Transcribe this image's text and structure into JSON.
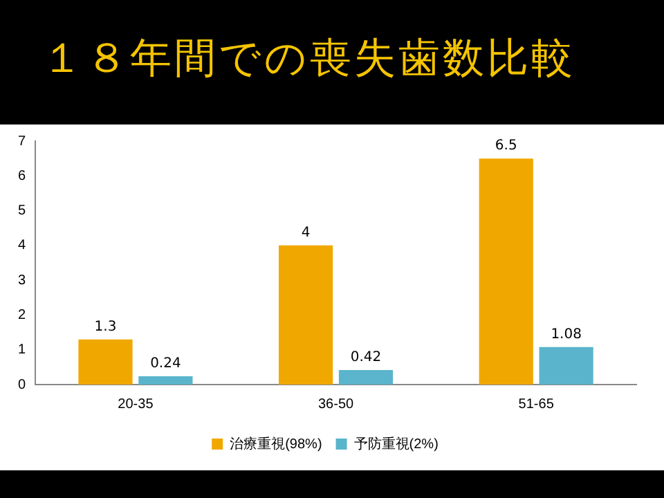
{
  "chart_data": {
    "type": "bar",
    "title": "１８年間での喪失歯数比較",
    "categories": [
      "20-35",
      "36-50",
      "51-65"
    ],
    "series": [
      {
        "name": "治療重視(98%)",
        "color": "#f0a800",
        "values": [
          1.3,
          4,
          6.5
        ]
      },
      {
        "name": "予防重視(2%)",
        "color": "#5ab4cc",
        "values": [
          0.24,
          0.42,
          1.08
        ]
      }
    ],
    "ylim": [
      0,
      7
    ],
    "yticks": [
      0,
      1,
      2,
      3,
      4,
      5,
      6,
      7
    ],
    "grid": false,
    "legend": "bottom",
    "data_labels": true
  }
}
